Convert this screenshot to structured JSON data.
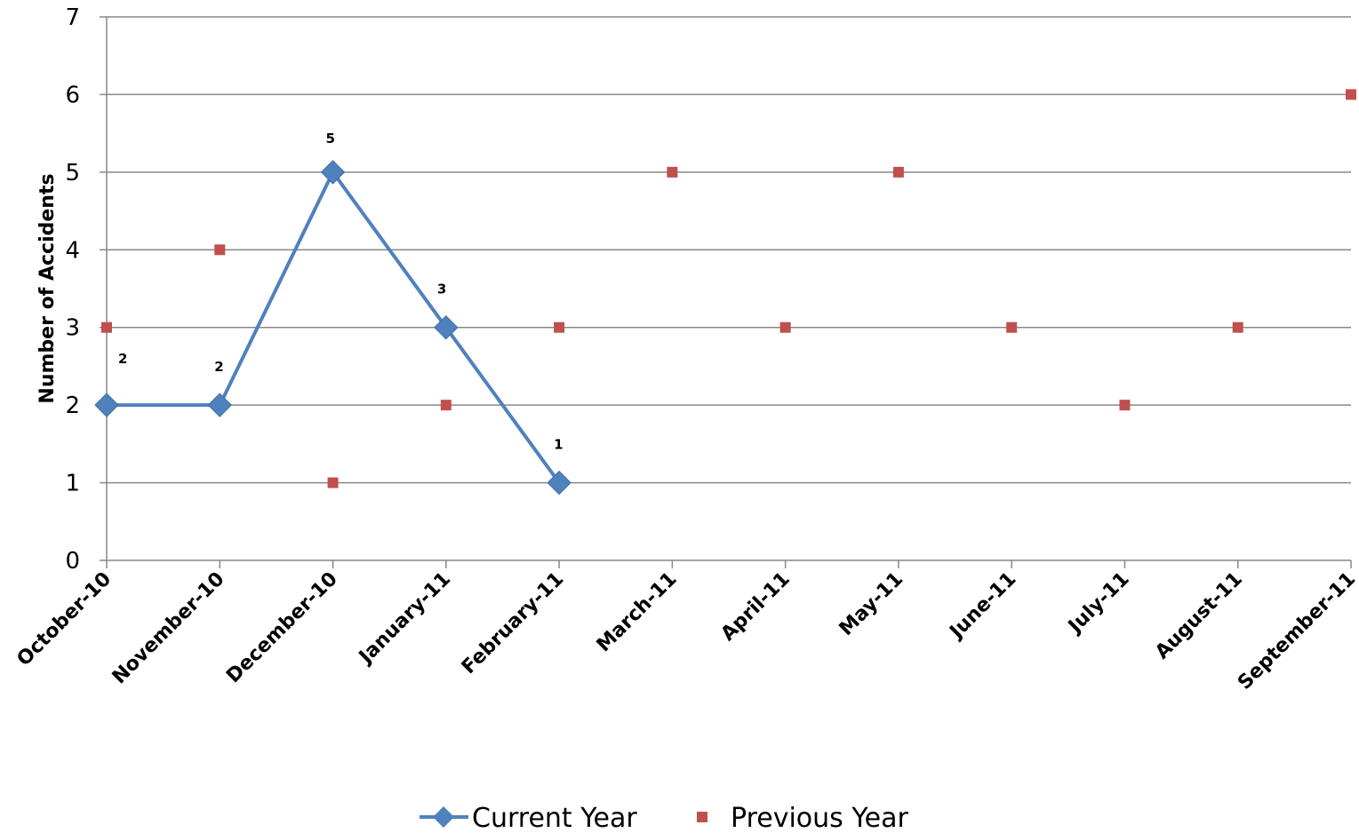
{
  "chart_data": {
    "type": "line",
    "title": "",
    "xlabel": "",
    "ylabel": "Number of Accidents",
    "ylim": [
      0,
      7
    ],
    "yticks": [
      "0",
      "1",
      "2",
      "3",
      "4",
      "5",
      "6",
      "7"
    ],
    "grid": true,
    "legend_position": "bottom",
    "categories": [
      "October-10",
      "November-10",
      "December-10",
      "January-11",
      "February-11",
      "March-11",
      "April-11",
      "May-11",
      "June-11",
      "July-11",
      "August-11",
      "September-11"
    ],
    "series": [
      {
        "name": "Current Year",
        "style": "line-diamond",
        "color": "#4F81BD",
        "values": [
          2,
          2,
          5,
          3,
          1,
          null,
          null,
          null,
          null,
          null,
          null,
          null
        ],
        "data_labels": [
          "2",
          "2",
          "5",
          "3",
          "1",
          null,
          null,
          null,
          null,
          null,
          null,
          null
        ]
      },
      {
        "name": "Previous Year",
        "style": "square-markers",
        "color": "#C0504D",
        "values": [
          3,
          4,
          1,
          2,
          3,
          5,
          3,
          5,
          3,
          2,
          3,
          6
        ]
      }
    ]
  }
}
